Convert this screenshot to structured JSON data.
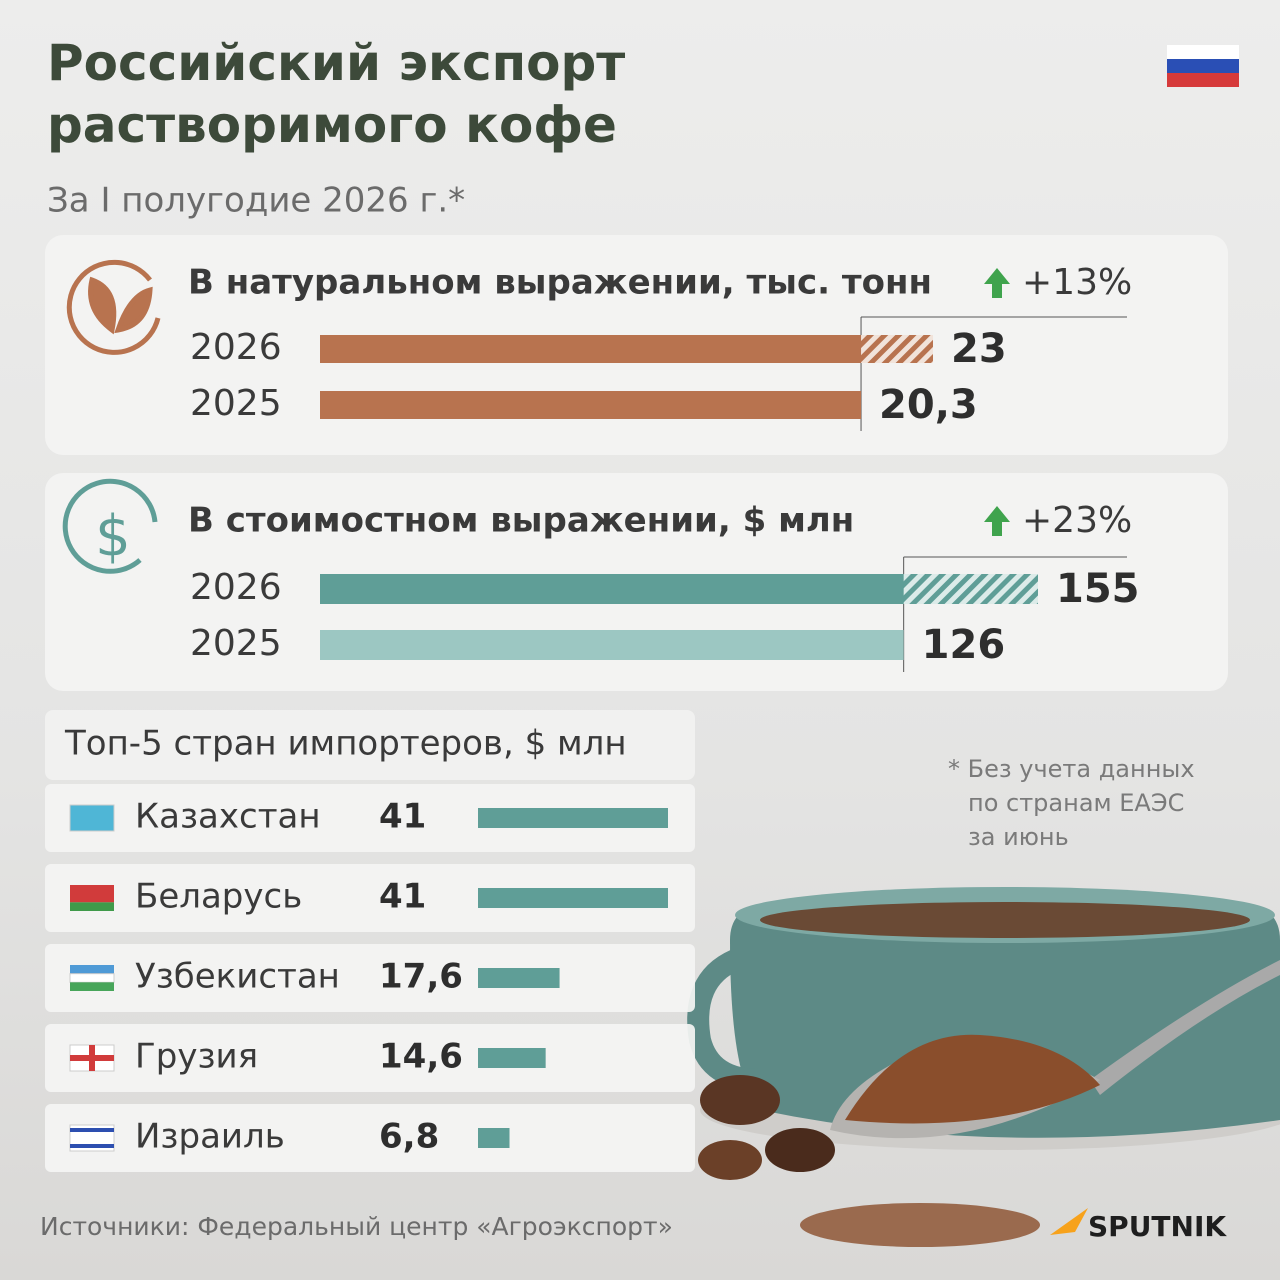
{
  "title": [
    "Российский экспорт",
    "растворимого кофе"
  ],
  "subtitle": "За I полугодие 2026 г.*",
  "note": [
    "* Без учета данных",
    "по странам ЕАЭС",
    "за июнь"
  ],
  "source": "Источники: Федеральный центр «Агроэкспорт»",
  "brand": "SPUTNIK",
  "chart_data": [
    {
      "type": "bar",
      "title": "В натуральном выражении, тыс. тонн",
      "change": "+13%",
      "categories": [
        "2026",
        "2025"
      ],
      "values": [
        23,
        20.3
      ],
      "value_labels": [
        "23",
        "20,3"
      ],
      "colors": [
        "#b8734f",
        "#b8734f"
      ]
    },
    {
      "type": "bar",
      "title": "В стоимостном выражении, $ млн",
      "change": "+23%",
      "categories": [
        "2026",
        "2025"
      ],
      "values": [
        155,
        126
      ],
      "value_labels": [
        "155",
        "126"
      ],
      "colors": [
        "#5f9e97",
        "#9cc7c2"
      ]
    },
    {
      "type": "bar",
      "title": "Топ-5 стран импортеров, $ млн",
      "categories": [
        "Казахстан",
        "Беларусь",
        "Узбекистан",
        "Грузия",
        "Израиль"
      ],
      "values": [
        41,
        41,
        17.6,
        14.6,
        6.8
      ],
      "value_labels": [
        "41",
        "41",
        "17,6",
        "14,6",
        "6,8"
      ],
      "color": "#5f9e97"
    }
  ]
}
